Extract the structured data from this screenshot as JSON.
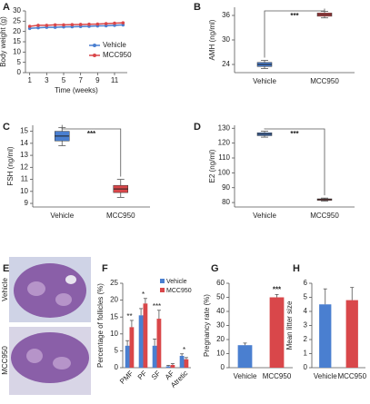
{
  "chart_data": [
    {
      "type": "line",
      "label": "A",
      "ylabel": "Body weight (g)",
      "xlabel": "Time (weeks)",
      "x": [
        1,
        2,
        3,
        4,
        5,
        6,
        7,
        8,
        9,
        10,
        11,
        12
      ],
      "xlim": [
        0.5,
        12.5
      ],
      "xticks": [
        1,
        3,
        5,
        7,
        9,
        11
      ],
      "ylim": [
        0,
        30
      ],
      "yticks": [
        0,
        5,
        10,
        15,
        20,
        25,
        30
      ],
      "legend": "lower right",
      "series": [
        {
          "name": "Vehicle",
          "color": "#4a7fd0",
          "values": [
            21.5,
            21.8,
            22,
            22,
            22.2,
            22.3,
            22.4,
            22.5,
            22.7,
            22.8,
            23,
            23.2
          ]
        },
        {
          "name": "MCC950",
          "color": "#d9474a",
          "values": [
            22.5,
            23,
            23,
            23.2,
            23.2,
            23.3,
            23.4,
            23.5,
            23.6,
            23.8,
            24,
            24.2
          ]
        }
      ]
    },
    {
      "type": "box",
      "label": "B",
      "ylabel": "AMH (ng/ml)",
      "categories": [
        "Vehicle",
        "MCC950"
      ],
      "colors": [
        "#4a7fd0",
        "#d9474a"
      ],
      "ylim": [
        22,
        38
      ],
      "yticks": [
        24,
        30,
        36
      ],
      "annotation": "***",
      "boxes": [
        {
          "min": 23,
          "q1": 23.5,
          "median": 24,
          "q3": 24.5,
          "max": 25
        },
        {
          "min": 35.4,
          "q1": 35.8,
          "median": 36.2,
          "q3": 36.6,
          "max": 37
        }
      ]
    },
    {
      "type": "box",
      "label": "C",
      "ylabel": "FSH (ng/ml)",
      "categories": [
        "Vehicle",
        "MCC950"
      ],
      "colors": [
        "#4a7fd0",
        "#d9474a"
      ],
      "ylim": [
        8.7,
        15.5
      ],
      "yticks": [
        9,
        10,
        11,
        12,
        13,
        14,
        15
      ],
      "annotation": "***",
      "boxes": [
        {
          "min": 13.8,
          "q1": 14.2,
          "median": 14.6,
          "q3": 15,
          "max": 15.3
        },
        {
          "min": 9.5,
          "q1": 9.9,
          "median": 10.2,
          "q3": 10.5,
          "max": 11
        }
      ]
    },
    {
      "type": "box",
      "label": "D",
      "ylabel": "E2 (ng/ml)",
      "categories": [
        "Vehicle",
        "MCC950"
      ],
      "colors": [
        "#4a7fd0",
        "#d9474a"
      ],
      "ylim": [
        77,
        132
      ],
      "yticks": [
        80,
        90,
        100,
        110,
        120,
        130
      ],
      "annotation": "***",
      "boxes": [
        {
          "min": 124,
          "q1": 125,
          "median": 126,
          "q3": 127,
          "max": 128
        },
        {
          "min": 81,
          "q1": 81.5,
          "median": 82,
          "q3": 82.5,
          "max": 83
        }
      ]
    },
    {
      "type": "bar",
      "label": "F",
      "ylabel": "Percentage of follicles (%)",
      "categories": [
        "PMF",
        "PF",
        "SF",
        "AF",
        "Atretic"
      ],
      "ylim": [
        0,
        25
      ],
      "yticks": [
        0,
        5,
        10,
        15,
        20,
        25
      ],
      "legend": "upper right",
      "annotations": [
        "**",
        "*",
        "***",
        null,
        "*"
      ],
      "series": [
        {
          "name": "Vehicle",
          "color": "#4a7fd0",
          "values": [
            6.5,
            15.5,
            6.5,
            0.4,
            3.5
          ],
          "errors": [
            1.5,
            2,
            2,
            0.3,
            0.6
          ]
        },
        {
          "name": "MCC950",
          "color": "#d9474a",
          "values": [
            12,
            19,
            14.5,
            0.8,
            2.5
          ],
          "errors": [
            2,
            1.5,
            2.5,
            0.4,
            0.5
          ]
        }
      ]
    },
    {
      "type": "bar",
      "label": "G",
      "ylabel": "Pregnancy rate (%)",
      "categories": [
        "Vehicle",
        "MCC950"
      ],
      "colors": [
        "#4a7fd0",
        "#d9474a"
      ],
      "ylim": [
        0,
        60
      ],
      "yticks": [
        0,
        10,
        20,
        30,
        40,
        50,
        60
      ],
      "values": [
        16,
        50
      ],
      "errors": [
        1.5,
        2
      ],
      "annotations": [
        null,
        "***"
      ]
    },
    {
      "type": "bar",
      "label": "H",
      "ylabel": "Mean litter size",
      "categories": [
        "Vehicle",
        "MCC950"
      ],
      "colors": [
        "#4a7fd0",
        "#d9474a"
      ],
      "ylim": [
        0,
        6
      ],
      "yticks": [
        0,
        1,
        2,
        3,
        4,
        5,
        6
      ],
      "values": [
        4.5,
        4.8
      ],
      "errors": [
        1.1,
        0.9
      ]
    }
  ],
  "image_panel": {
    "label": "E",
    "rows": [
      "Vehicle",
      "MCC950"
    ]
  }
}
